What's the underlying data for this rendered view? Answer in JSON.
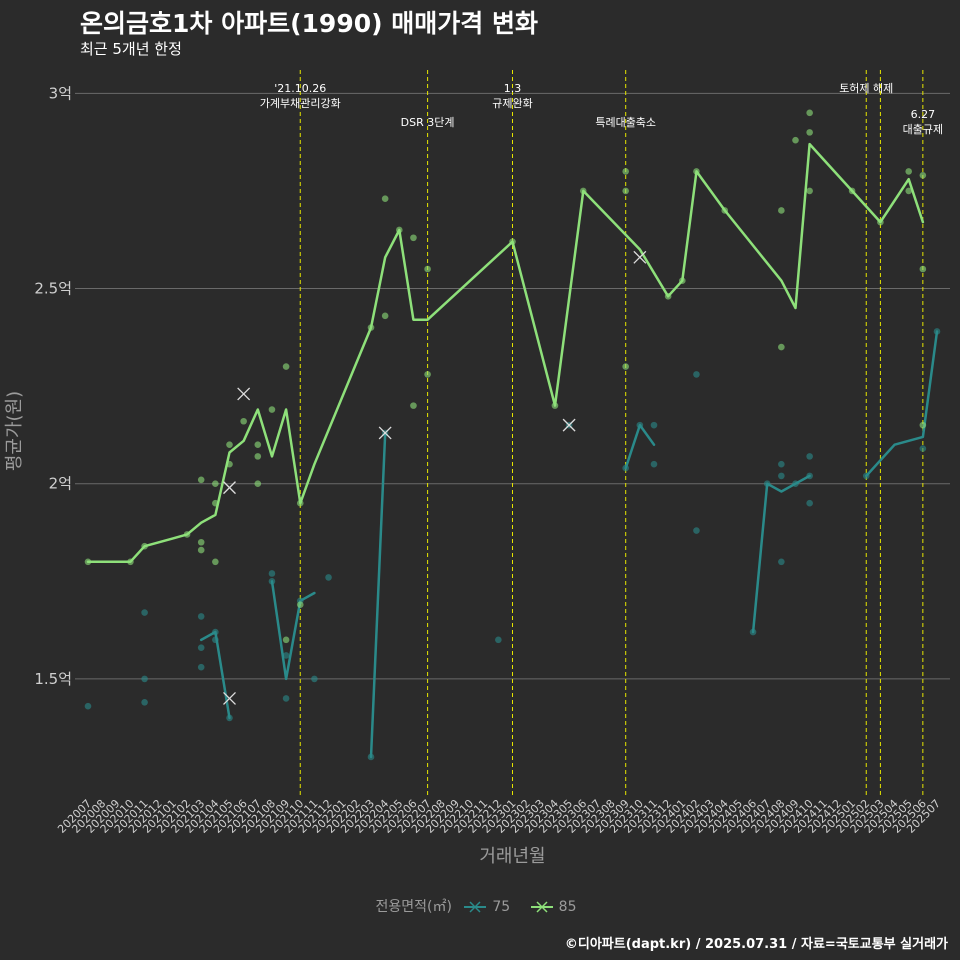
{
  "header": {
    "title": "온의금호1차 아파트(1990) 매매가격 변화",
    "subtitle": "최근 5개년 한정"
  },
  "caption": "©디아파트(dapt.kr) / 2025.07.31 / 자료=국토교통부 실거래가",
  "legend": {
    "title": "전용면적(㎡)",
    "items": [
      {
        "label": "75",
        "color": "#2a8a8a"
      },
      {
        "label": "85",
        "color": "#8ee07a"
      }
    ]
  },
  "colors": {
    "background": "#2b2b2b",
    "grid": "#6a6a6a",
    "event_line": "#e6e600",
    "axis_text": "#9b9b9b",
    "tick_text": "#cfcfcf"
  },
  "chart_data": {
    "type": "line",
    "xlabel": "거래년월",
    "ylabel": "평균가(원)",
    "ylim": [
      1.2,
      3.07
    ],
    "y_unit": "억",
    "y_ticks": [
      {
        "value": 1.5,
        "label": "1.5억"
      },
      {
        "value": 2,
        "label": "2억"
      },
      {
        "value": 2.5,
        "label": "2.5억"
      },
      {
        "value": 3,
        "label": "3억"
      }
    ],
    "x_categories": [
      "202007",
      "202008",
      "202009",
      "202010",
      "202011",
      "202012",
      "202101",
      "202102",
      "202103",
      "202104",
      "202105",
      "202106",
      "202107",
      "202108",
      "202109",
      "202110",
      "202111",
      "202112",
      "202201",
      "202202",
      "202203",
      "202204",
      "202205",
      "202206",
      "202207",
      "202208",
      "202209",
      "202210",
      "202211",
      "202212",
      "202301",
      "202302",
      "202303",
      "202304",
      "202305",
      "202306",
      "202307",
      "202308",
      "202309",
      "202310",
      "202311",
      "202312",
      "202401",
      "202402",
      "202403",
      "202404",
      "202405",
      "202406",
      "202407",
      "202408",
      "202409",
      "202410",
      "202411",
      "202412",
      "202501",
      "202502",
      "202503",
      "202504",
      "202505",
      "202506",
      "202507"
    ],
    "events": [
      {
        "x": "202110",
        "label_lines": [
          "'21.10.26",
          "가계부채관리강화"
        ],
        "row": 0
      },
      {
        "x": "202207",
        "label_lines": [
          "DSR 3단계"
        ],
        "row": 1
      },
      {
        "x": "202301",
        "label_lines": [
          "1.3",
          "규제완화"
        ],
        "row": 0
      },
      {
        "x": "202309",
        "label_lines": [
          "특례대출축소"
        ],
        "row": 1
      },
      {
        "x": "202502",
        "label_lines": [
          "토허제 해제"
        ],
        "row": 0
      },
      {
        "x": "202503",
        "label_lines": [],
        "row": 0
      },
      {
        "x": "202506",
        "label_lines": [
          "6.27",
          "대출규제"
        ],
        "row": 2
      }
    ],
    "series": [
      {
        "name": "75",
        "color": "#2a8a8a",
        "segments": [
          [
            [
              "202103",
              1.6
            ],
            [
              "202104",
              1.62
            ],
            [
              "202105",
              1.4
            ]
          ],
          [
            [
              "202108",
              1.75
            ],
            [
              "202109",
              1.5
            ],
            [
              "202110",
              1.7
            ],
            [
              "202111",
              1.72
            ]
          ],
          [
            [
              "202203",
              1.3
            ],
            [
              "202204",
              2.13
            ]
          ],
          [
            [
              "202305",
              2.15
            ]
          ],
          [
            [
              "202309",
              2.04
            ],
            [
              "202310",
              2.15
            ],
            [
              "202311",
              2.1
            ]
          ],
          [
            [
              "202406",
              1.62
            ],
            [
              "202407",
              2.0
            ],
            [
              "202408",
              1.98
            ],
            [
              "202409",
              2.0
            ],
            [
              "202410",
              2.02
            ]
          ],
          [
            [
              "202502",
              2.02
            ],
            [
              "202503",
              2.06
            ],
            [
              "202504",
              2.1
            ],
            [
              "202506",
              2.12
            ],
            [
              "202507",
              2.39
            ]
          ]
        ],
        "points": [
          [
            "202007",
            1.43
          ],
          [
            "202011",
            1.67
          ],
          [
            "202011",
            1.5
          ],
          [
            "202011",
            1.44
          ],
          [
            "202103",
            1.66
          ],
          [
            "202103",
            1.58
          ],
          [
            "202103",
            1.53
          ],
          [
            "202104",
            1.62
          ],
          [
            "202104",
            1.6
          ],
          [
            "202105",
            1.4
          ],
          [
            "202108",
            1.77
          ],
          [
            "202108",
            1.75
          ],
          [
            "202109",
            1.56
          ],
          [
            "202109",
            1.45
          ],
          [
            "202110",
            1.7
          ],
          [
            "202111",
            1.5
          ],
          [
            "202112",
            1.76
          ],
          [
            "202203",
            1.3
          ],
          [
            "202204",
            2.13
          ],
          [
            "202212",
            1.6
          ],
          [
            "202305",
            2.15
          ],
          [
            "202309",
            2.04
          ],
          [
            "202310",
            2.15
          ],
          [
            "202311",
            2.15
          ],
          [
            "202311",
            2.05
          ],
          [
            "202402",
            1.88
          ],
          [
            "202402",
            2.28
          ],
          [
            "202406",
            1.62
          ],
          [
            "202407",
            2.0
          ],
          [
            "202408",
            2.05
          ],
          [
            "202408",
            2.02
          ],
          [
            "202408",
            1.8
          ],
          [
            "202409",
            2.0
          ],
          [
            "202410",
            2.07
          ],
          [
            "202410",
            2.02
          ],
          [
            "202410",
            1.95
          ],
          [
            "202502",
            2.02
          ],
          [
            "202506",
            2.09
          ],
          [
            "202507",
            2.39
          ]
        ],
        "cancelled": [
          [
            "202105",
            1.45
          ],
          [
            "202204",
            2.13
          ],
          [
            "202305",
            2.15
          ]
        ]
      },
      {
        "name": "85",
        "color": "#8ee07a",
        "segments": [
          [
            [
              "202007",
              1.8
            ],
            [
              "202008",
              1.8
            ],
            [
              "202009",
              1.8
            ],
            [
              "202010",
              1.8
            ],
            [
              "202011",
              1.84
            ],
            [
              "202012",
              1.85
            ],
            [
              "202101",
              1.86
            ],
            [
              "202102",
              1.87
            ],
            [
              "202103",
              1.9
            ],
            [
              "202104",
              1.92
            ],
            [
              "202105",
              2.08
            ],
            [
              "202106",
              2.11
            ],
            [
              "202107",
              2.19
            ],
            [
              "202108",
              2.07
            ],
            [
              "202109",
              2.19
            ],
            [
              "202110",
              1.95
            ],
            [
              "202111",
              2.05
            ],
            [
              "202203",
              2.4
            ],
            [
              "202204",
              2.58
            ],
            [
              "202205",
              2.65
            ],
            [
              "202206",
              2.42
            ],
            [
              "202207",
              2.42
            ],
            [
              "202301",
              2.62
            ],
            [
              "202304",
              2.2
            ],
            [
              "202306",
              2.75
            ],
            [
              "202310",
              2.6
            ],
            [
              "202312",
              2.48
            ],
            [
              "202401",
              2.52
            ],
            [
              "202402",
              2.8
            ],
            [
              "202404",
              2.7
            ],
            [
              "202408",
              2.52
            ],
            [
              "202409",
              2.45
            ],
            [
              "202410",
              2.87
            ],
            [
              "202501",
              2.75
            ],
            [
              "202503",
              2.67
            ],
            [
              "202505",
              2.78
            ],
            [
              "202506",
              2.67
            ]
          ]
        ],
        "points": [
          [
            "202007",
            1.8
          ],
          [
            "202010",
            1.8
          ],
          [
            "202011",
            1.84
          ],
          [
            "202102",
            1.87
          ],
          [
            "202103",
            2.01
          ],
          [
            "202103",
            1.85
          ],
          [
            "202103",
            1.83
          ],
          [
            "202104",
            2.0
          ],
          [
            "202104",
            1.95
          ],
          [
            "202104",
            1.8
          ],
          [
            "202105",
            2.1
          ],
          [
            "202105",
            2.05
          ],
          [
            "202106",
            2.16
          ],
          [
            "202107",
            2.1
          ],
          [
            "202107",
            2.07
          ],
          [
            "202107",
            2.0
          ],
          [
            "202108",
            2.19
          ],
          [
            "202109",
            2.3
          ],
          [
            "202109",
            1.6
          ],
          [
            "202110",
            1.95
          ],
          [
            "202110",
            1.69
          ],
          [
            "202203",
            2.4
          ],
          [
            "202204",
            2.73
          ],
          [
            "202204",
            2.43
          ],
          [
            "202205",
            2.65
          ],
          [
            "202206",
            2.63
          ],
          [
            "202206",
            2.2
          ],
          [
            "202207",
            2.55
          ],
          [
            "202207",
            2.28
          ],
          [
            "202301",
            2.62
          ],
          [
            "202304",
            2.2
          ],
          [
            "202306",
            2.75
          ],
          [
            "202309",
            2.8
          ],
          [
            "202309",
            2.75
          ],
          [
            "202309",
            2.3
          ],
          [
            "202312",
            2.48
          ],
          [
            "202401",
            2.52
          ],
          [
            "202402",
            2.8
          ],
          [
            "202404",
            2.7
          ],
          [
            "202408",
            2.7
          ],
          [
            "202408",
            2.35
          ],
          [
            "202409",
            2.88
          ],
          [
            "202410",
            2.95
          ],
          [
            "202410",
            2.9
          ],
          [
            "202410",
            2.75
          ],
          [
            "202501",
            2.75
          ],
          [
            "202503",
            2.67
          ],
          [
            "202505",
            2.8
          ],
          [
            "202505",
            2.75
          ],
          [
            "202506",
            2.79
          ],
          [
            "202506",
            2.55
          ],
          [
            "202506",
            2.15
          ]
        ],
        "cancelled": [
          [
            "202105",
            1.99
          ],
          [
            "202106",
            2.23
          ],
          [
            "202310",
            2.58
          ]
        ]
      }
    ]
  }
}
